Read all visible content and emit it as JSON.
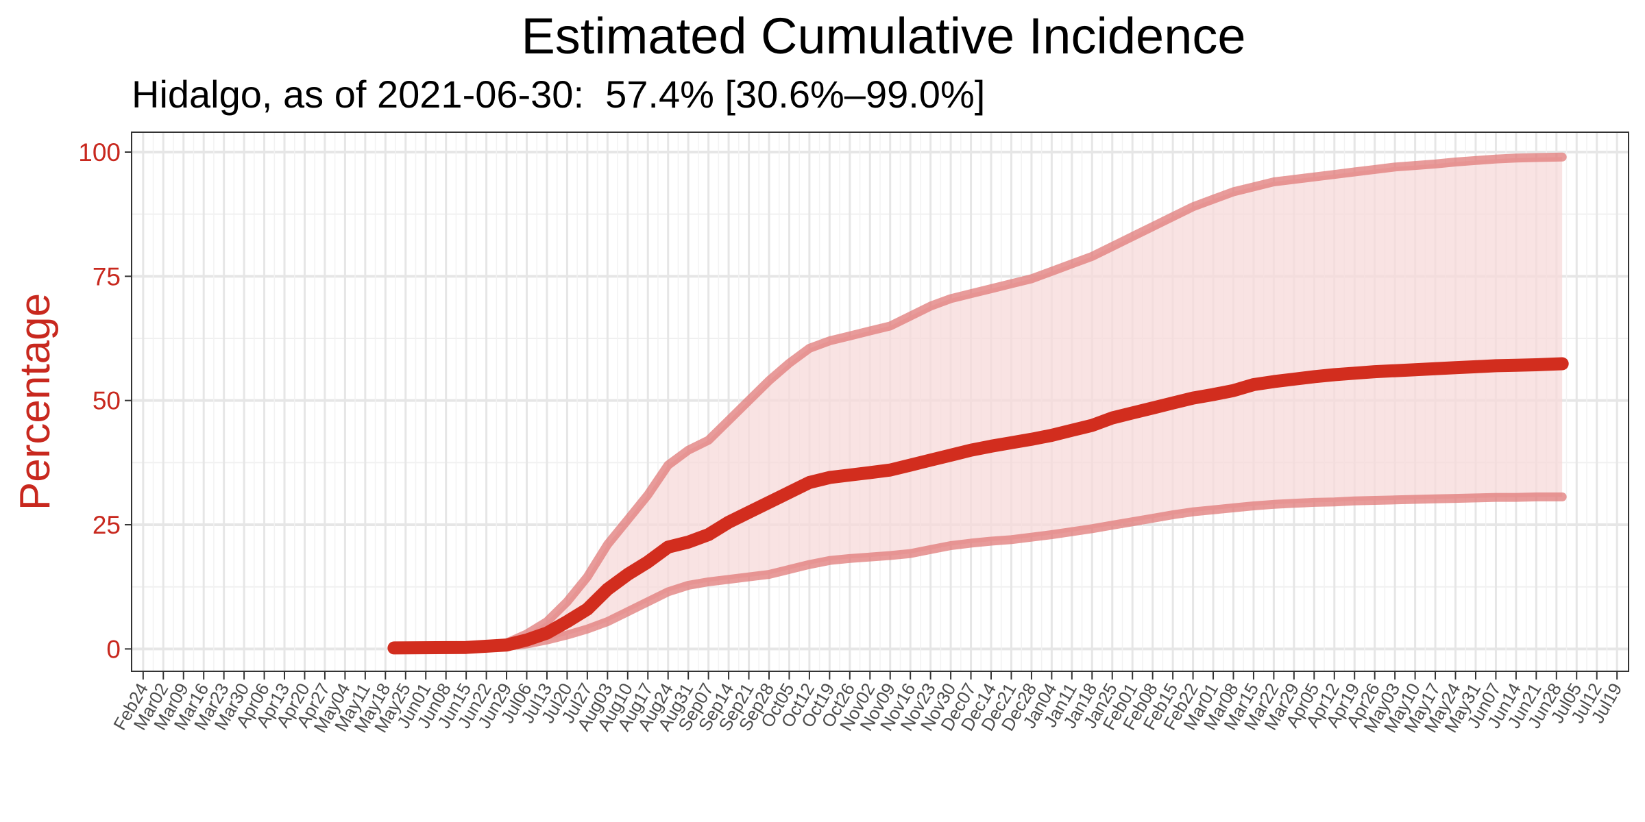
{
  "chart_data": {
    "type": "line",
    "title": "Estimated Cumulative Incidence",
    "subtitle": "Hidalgo, as of 2021-06-30:  57.4% [30.6%–99.0%]",
    "xlabel": "",
    "ylabel": "Percentage",
    "ylim": [
      -4.5,
      104
    ],
    "yticks": [
      0,
      25,
      50,
      75,
      100
    ],
    "xlim": [
      "2020-02-20",
      "2021-07-23"
    ],
    "x_tick_labels": [
      "Feb24",
      "Mar02",
      "Mar09",
      "Mar16",
      "Mar23",
      "Mar30",
      "Apr06",
      "Apr13",
      "Apr20",
      "Apr27",
      "May04",
      "May11",
      "May18",
      "May25",
      "Jun01",
      "Jun08",
      "Jun15",
      "Jun22",
      "Jun29",
      "Jul06",
      "Jul13",
      "Jul20",
      "Jul27",
      "Aug03",
      "Aug10",
      "Aug17",
      "Aug24",
      "Aug31",
      "Sep07",
      "Sep14",
      "Sep21",
      "Sep28",
      "Oct05",
      "Oct12",
      "Oct19",
      "Oct26",
      "Nov02",
      "Nov09",
      "Nov16",
      "Nov23",
      "Nov30",
      "Dec07",
      "Dec14",
      "Dec21",
      "Dec28",
      "Jan04",
      "Jan11",
      "Jan18",
      "Jan25",
      "Feb01",
      "Feb08",
      "Feb15",
      "Feb22",
      "Mar01",
      "Mar08",
      "Mar15",
      "Mar22",
      "Mar29",
      "Apr05",
      "Apr12",
      "Apr19",
      "Apr26",
      "May03",
      "May10",
      "May17",
      "May24",
      "May31",
      "Jun07",
      "Jun14",
      "Jun21",
      "Jun28",
      "Jul05",
      "Jul12",
      "Jul19"
    ],
    "grid": true,
    "colors": {
      "line": "#d22d1e",
      "band": "#f7d9da",
      "bounds": "#e07a78",
      "axis_text": "#c8281e"
    },
    "series": [
      {
        "role": "estimate",
        "x": [
          "2020-05-21",
          "2020-06-15",
          "2020-06-29",
          "2020-07-06",
          "2020-07-13",
          "2020-07-20",
          "2020-07-27",
          "2020-08-03",
          "2020-08-10",
          "2020-08-17",
          "2020-08-24",
          "2020-08-31",
          "2020-09-07",
          "2020-09-14",
          "2020-09-21",
          "2020-09-28",
          "2020-10-05",
          "2020-10-12",
          "2020-10-19",
          "2020-10-26",
          "2020-11-02",
          "2020-11-09",
          "2020-11-16",
          "2020-11-23",
          "2020-11-30",
          "2020-12-07",
          "2020-12-14",
          "2020-12-21",
          "2020-12-28",
          "2021-01-04",
          "2021-01-11",
          "2021-01-18",
          "2021-01-25",
          "2021-02-01",
          "2021-02-08",
          "2021-02-15",
          "2021-02-22",
          "2021-03-01",
          "2021-03-08",
          "2021-03-15",
          "2021-03-22",
          "2021-03-29",
          "2021-04-05",
          "2021-04-12",
          "2021-04-19",
          "2021-04-26",
          "2021-05-03",
          "2021-05-10",
          "2021-05-17",
          "2021-05-24",
          "2021-05-31",
          "2021-06-07",
          "2021-06-14",
          "2021-06-21",
          "2021-06-30"
        ],
        "y": [
          0.2,
          0.3,
          0.8,
          1.8,
          3.2,
          5.5,
          8.0,
          12.0,
          15.0,
          17.5,
          20.5,
          21.5,
          23.0,
          25.5,
          27.5,
          29.5,
          31.5,
          33.5,
          34.5,
          35.0,
          35.5,
          36.0,
          37.0,
          38.0,
          39.0,
          40.0,
          40.8,
          41.5,
          42.2,
          43.0,
          44.0,
          45.0,
          46.5,
          47.5,
          48.5,
          49.5,
          50.5,
          51.2,
          52.0,
          53.2,
          53.8,
          54.3,
          54.8,
          55.2,
          55.5,
          55.8,
          56.0,
          56.2,
          56.4,
          56.6,
          56.8,
          57.0,
          57.1,
          57.2,
          57.4
        ]
      },
      {
        "role": "upper",
        "x": [
          "2020-05-21",
          "2020-06-15",
          "2020-06-29",
          "2020-07-06",
          "2020-07-13",
          "2020-07-20",
          "2020-07-27",
          "2020-08-03",
          "2020-08-10",
          "2020-08-17",
          "2020-08-24",
          "2020-08-31",
          "2020-09-07",
          "2020-09-14",
          "2020-09-21",
          "2020-09-28",
          "2020-10-05",
          "2020-10-12",
          "2020-10-19",
          "2020-10-26",
          "2020-11-02",
          "2020-11-09",
          "2020-11-16",
          "2020-11-23",
          "2020-11-30",
          "2020-12-07",
          "2020-12-14",
          "2020-12-21",
          "2020-12-28",
          "2021-01-04",
          "2021-01-11",
          "2021-01-18",
          "2021-01-25",
          "2021-02-01",
          "2021-02-08",
          "2021-02-15",
          "2021-02-22",
          "2021-03-01",
          "2021-03-08",
          "2021-03-15",
          "2021-03-22",
          "2021-03-29",
          "2021-04-05",
          "2021-04-12",
          "2021-04-19",
          "2021-04-26",
          "2021-05-03",
          "2021-05-10",
          "2021-05-17",
          "2021-05-24",
          "2021-05-31",
          "2021-06-07",
          "2021-06-14",
          "2021-06-21",
          "2021-06-30"
        ],
        "y": [
          0.3,
          0.5,
          1.2,
          3.0,
          5.5,
          9.5,
          14.5,
          21.0,
          26.0,
          31.0,
          37.0,
          40.0,
          42.0,
          46.0,
          50.0,
          54.0,
          57.5,
          60.5,
          62.0,
          63.0,
          64.0,
          65.0,
          67.0,
          69.0,
          70.5,
          71.5,
          72.5,
          73.5,
          74.5,
          76.0,
          77.5,
          79.0,
          81.0,
          83.0,
          85.0,
          87.0,
          89.0,
          90.5,
          92.0,
          93.0,
          94.0,
          94.5,
          95.0,
          95.5,
          96.0,
          96.5,
          97.0,
          97.3,
          97.6,
          98.0,
          98.3,
          98.6,
          98.8,
          98.9,
          99.0
        ]
      },
      {
        "role": "lower",
        "x": [
          "2020-05-21",
          "2020-06-15",
          "2020-06-29",
          "2020-07-06",
          "2020-07-13",
          "2020-07-20",
          "2020-07-27",
          "2020-08-03",
          "2020-08-10",
          "2020-08-17",
          "2020-08-24",
          "2020-08-31",
          "2020-09-07",
          "2020-09-14",
          "2020-09-21",
          "2020-09-28",
          "2020-10-05",
          "2020-10-12",
          "2020-10-19",
          "2020-10-26",
          "2020-11-02",
          "2020-11-09",
          "2020-11-16",
          "2020-11-23",
          "2020-11-30",
          "2020-12-07",
          "2020-12-14",
          "2020-12-21",
          "2020-12-28",
          "2021-01-04",
          "2021-01-11",
          "2021-01-18",
          "2021-01-25",
          "2021-02-01",
          "2021-02-08",
          "2021-02-15",
          "2021-02-22",
          "2021-03-01",
          "2021-03-08",
          "2021-03-15",
          "2021-03-22",
          "2021-03-29",
          "2021-04-05",
          "2021-04-12",
          "2021-04-19",
          "2021-04-26",
          "2021-05-03",
          "2021-05-10",
          "2021-05-17",
          "2021-05-24",
          "2021-05-31",
          "2021-06-07",
          "2021-06-14",
          "2021-06-21",
          "2021-06-30"
        ],
        "y": [
          0.1,
          0.2,
          0.5,
          1.0,
          1.8,
          2.8,
          4.0,
          5.5,
          7.5,
          9.5,
          11.5,
          12.8,
          13.5,
          14.0,
          14.5,
          15.0,
          16.0,
          17.0,
          17.8,
          18.2,
          18.5,
          18.8,
          19.2,
          20.0,
          20.8,
          21.3,
          21.7,
          22.0,
          22.5,
          23.0,
          23.6,
          24.2,
          24.9,
          25.6,
          26.3,
          27.0,
          27.6,
          28.0,
          28.4,
          28.8,
          29.1,
          29.3,
          29.5,
          29.6,
          29.8,
          29.9,
          30.0,
          30.1,
          30.2,
          30.3,
          30.4,
          30.5,
          30.5,
          30.6,
          30.6
        ]
      }
    ]
  }
}
